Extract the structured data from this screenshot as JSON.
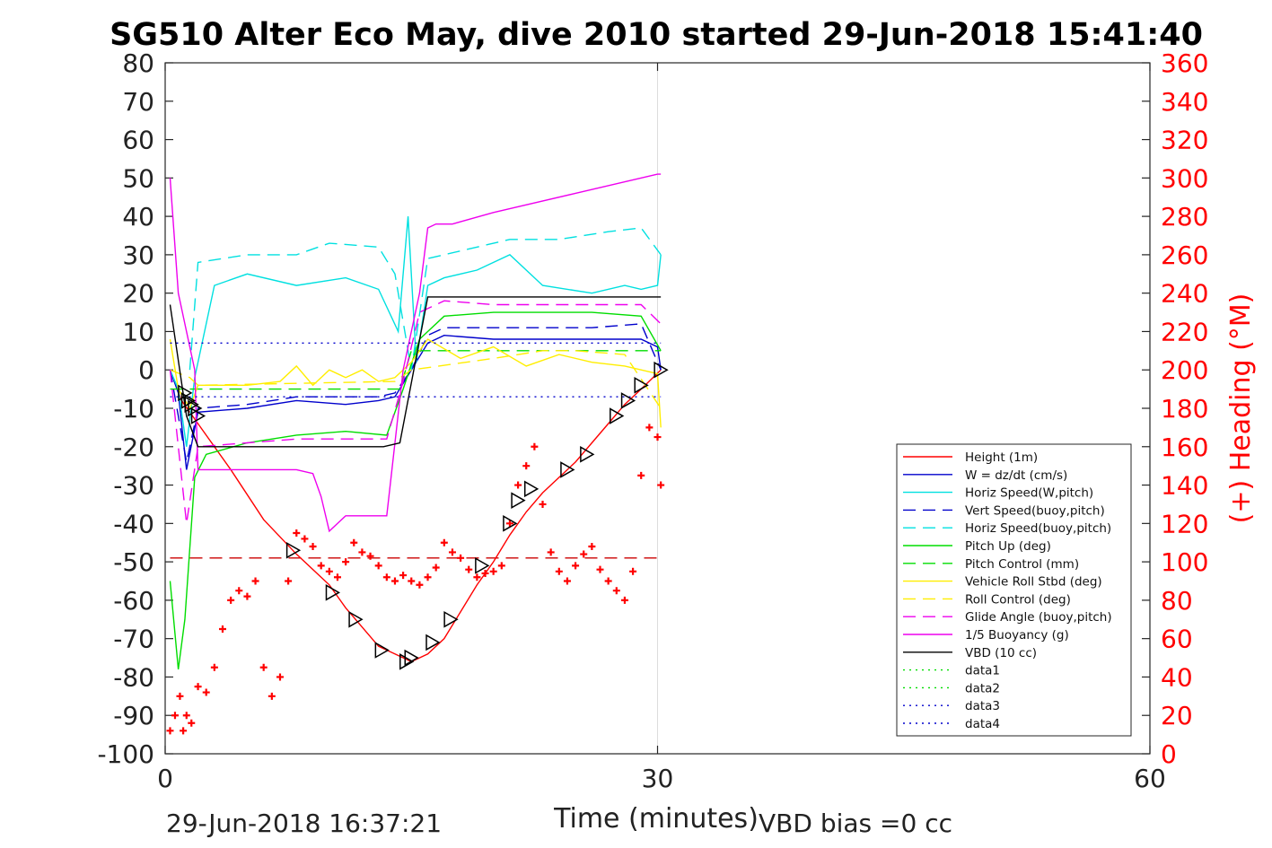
{
  "chart_data": {
    "type": "line",
    "title": "SG510 Alter Eco May, dive 2010 started 29-Jun-2018 15:41:40",
    "xlabel": "Time (minutes)",
    "ylabel_right": "(+) Heading (°M)",
    "footer_left": "29-Jun-2018 16:37:21",
    "footer_right": "VBD bias =0 cc",
    "xlim": [
      0,
      60
    ],
    "ylim": [
      -100,
      80
    ],
    "ylim_right": [
      0,
      360
    ],
    "xticks": [
      "0",
      "30",
      "60"
    ],
    "yticks": [
      "80",
      "70",
      "60",
      "50",
      "40",
      "30",
      "20",
      "10",
      "0",
      "-10",
      "-20",
      "-30",
      "-40",
      "-50",
      "-60",
      "-70",
      "-80",
      "-90",
      "-100"
    ],
    "yticks_right": [
      "360",
      "340",
      "320",
      "300",
      "280",
      "260",
      "240",
      "220",
      "200",
      "180",
      "160",
      "140",
      "120",
      "100",
      "80",
      "60",
      "40",
      "20",
      "0"
    ],
    "grid": "x-only",
    "legend_position": "lower-right",
    "series": [
      {
        "name": "Height (1m)",
        "color": "#ff0000",
        "style": "solid",
        "x": [
          0.3,
          1,
          2,
          4,
          6,
          8,
          10,
          11,
          12,
          13,
          14,
          15,
          16,
          17,
          18,
          19,
          20,
          21,
          22,
          23,
          24,
          25,
          26,
          27,
          28,
          29,
          30.2
        ],
        "y": [
          0,
          -8,
          -14,
          -26,
          -39,
          -48,
          -56,
          -62,
          -67,
          -72,
          -74,
          -76,
          -74,
          -70,
          -63,
          -56,
          -50,
          -43,
          -37,
          -32,
          -28,
          -24,
          -19,
          -14,
          -9,
          -5,
          0
        ]
      },
      {
        "name": "W = dz/dt (cm/s)",
        "color": "#0000cc",
        "style": "solid",
        "x": [
          0.3,
          0.8,
          1.3,
          2,
          5,
          8,
          11,
          13,
          14,
          15,
          16,
          17,
          20,
          23,
          26,
          29,
          30,
          30.2
        ],
        "y": [
          0,
          -6,
          -26,
          -11,
          -10,
          -8,
          -9,
          -8,
          -7,
          0,
          7,
          9,
          8,
          8,
          8,
          8,
          6,
          0
        ]
      },
      {
        "name": "Horiz Speed(W,pitch)",
        "color": "#00e0e0",
        "style": "solid",
        "x": [
          0.3,
          0.8,
          1.3,
          1.8,
          3,
          5,
          8,
          11,
          13,
          14.2,
          14.8,
          15.3,
          16,
          17,
          19,
          21,
          23,
          26,
          28,
          29,
          30,
          30.2
        ],
        "y": [
          0,
          -5,
          -20,
          -2,
          22,
          25,
          22,
          24,
          21,
          10,
          40,
          2,
          22,
          24,
          26,
          30,
          22,
          20,
          22,
          21,
          22,
          30
        ]
      },
      {
        "name": "Vert Speed(buoy,pitch)",
        "color": "#0000cc",
        "style": "dashed",
        "x": [
          0.3,
          1.3,
          2,
          5,
          8,
          11,
          13,
          14,
          15,
          16,
          17,
          20,
          23,
          26,
          29,
          30.2
        ],
        "y": [
          0,
          -24,
          -10,
          -9,
          -7,
          -7,
          -7,
          -6,
          0,
          9,
          11,
          11,
          11,
          11,
          12,
          0
        ]
      },
      {
        "name": "Horiz Speed(buoy,pitch)",
        "color": "#00e0e0",
        "style": "dashed",
        "x": [
          1.5,
          2,
          5,
          8,
          10,
          13,
          14,
          15,
          16,
          18,
          21,
          24,
          27,
          29,
          30.2
        ],
        "y": [
          0,
          28,
          30,
          30,
          33,
          32,
          25,
          0,
          29,
          31,
          34,
          34,
          36,
          37,
          30
        ]
      },
      {
        "name": "Pitch Up (deg)",
        "color": "#00dd00",
        "style": "solid",
        "x": [
          0.3,
          0.8,
          1.2,
          1.8,
          2.5,
          5,
          8,
          11,
          13.5,
          14.5,
          15.5,
          17,
          20,
          23,
          26,
          29,
          30.2
        ],
        "y": [
          -55,
          -78,
          -65,
          -28,
          -22,
          -19,
          -17,
          -16,
          -17,
          -5,
          8,
          14,
          15,
          15,
          15,
          14,
          5
        ]
      },
      {
        "name": "Pitch Control (mm)",
        "color": "#00dd00",
        "style": "dashed",
        "x": [
          0.3,
          0.6,
          1.4,
          14.3,
          15,
          30.2
        ],
        "y": [
          -5,
          -5,
          -5,
          -5,
          5,
          5
        ]
      },
      {
        "name": "Vehicle Roll Stbd (deg)",
        "color": "#ffee00",
        "style": "solid",
        "x": [
          0.3,
          0.8,
          1.5,
          2,
          5,
          7,
          8,
          9,
          10,
          11,
          12,
          13,
          14,
          15,
          16,
          18,
          20,
          22,
          24,
          26,
          28,
          30,
          30.2
        ],
        "y": [
          8,
          -5,
          -10,
          -4,
          -4,
          -3,
          1,
          -4,
          0,
          -2,
          0,
          -3,
          -2,
          2,
          8,
          3,
          6,
          1,
          4,
          2,
          1,
          -1,
          -15
        ]
      },
      {
        "name": "Roll Control (deg)",
        "color": "#ffee00",
        "style": "dashed",
        "x": [
          0.3,
          1.5,
          2,
          14,
          15,
          20,
          23,
          25,
          28,
          30.2
        ],
        "y": [
          0,
          -2,
          -4,
          -3,
          0,
          3,
          5,
          5,
          4,
          -10
        ]
      },
      {
        "name": "Glide Angle (buoy,pitch)",
        "color": "#ee00ee",
        "style": "dashed",
        "x": [
          0.3,
          1.3,
          2,
          5,
          8,
          11,
          13.5,
          14.5,
          15.5,
          17,
          20,
          23,
          26,
          29,
          30.2
        ],
        "y": [
          0,
          -40,
          -20,
          -19,
          -18,
          -18,
          -18,
          -3,
          15,
          18,
          17,
          17,
          17,
          17,
          12
        ]
      },
      {
        "name": "1/5 Buoyancy (g)",
        "color": "#ee00ee",
        "style": "solid",
        "x": [
          0.3,
          0.8,
          1.8,
          2,
          8,
          9,
          9.5,
          10,
          11,
          13,
          13.5,
          14.5,
          15.5,
          16,
          16.5,
          17.5,
          20,
          25,
          30,
          30.2
        ],
        "y": [
          50,
          20,
          0,
          -26,
          -26,
          -27,
          -33,
          -42,
          -38,
          -38,
          -38,
          0,
          20,
          37,
          38,
          38,
          41,
          46,
          51,
          51
        ]
      },
      {
        "name": "VBD (10 cc)",
        "color": "#000000",
        "style": "solid",
        "x": [
          0.3,
          1.3,
          2,
          13.3,
          14.3,
          16,
          30.2
        ],
        "y": [
          17,
          -12,
          -20,
          -20,
          -19,
          19,
          19
        ]
      },
      {
        "name": "data1",
        "color": "#00dd00",
        "style": "dotted",
        "x": [],
        "y": []
      },
      {
        "name": "data2",
        "color": "#00dd00",
        "style": "dotted",
        "x": [],
        "y": []
      },
      {
        "name": "data3",
        "color": "#0000cc",
        "style": "dotted",
        "x": [
          0.3,
          30.2
        ],
        "y": [
          7,
          7
        ]
      },
      {
        "name": "data4",
        "color": "#0000cc",
        "style": "dotted",
        "x": [
          0.3,
          30.2
        ],
        "y": [
          -7,
          -7
        ]
      }
    ],
    "reference_lines": [
      {
        "style": "dashed",
        "color": "#cc0000",
        "x": [
          0.3,
          30.2
        ],
        "y": [
          -49,
          -49
        ]
      }
    ],
    "markers": {
      "triangles": {
        "x": [
          1.2,
          1.4,
          1.6,
          1.8,
          2.0,
          7.8,
          10.2,
          11.6,
          13.2,
          14.7,
          15.0,
          16.3,
          17.4,
          19.3,
          21.0,
          21.5,
          22.3,
          24.5,
          25.7,
          27.5,
          28.2,
          29.0,
          30.2
        ],
        "y": [
          -6,
          -8,
          -9,
          -10,
          -12,
          -47,
          -58,
          -65,
          -73,
          -76,
          -75,
          -71,
          -65,
          -51,
          -40,
          -34,
          -31,
          -26,
          -22,
          -12,
          -8,
          -4,
          0
        ]
      },
      "heading_crosses": {
        "x": [
          0.3,
          0.6,
          0.9,
          1.1,
          1.3,
          1.6,
          2.0,
          2.5,
          3,
          3.5,
          4,
          4.5,
          5,
          5.5,
          6,
          6.5,
          7,
          7.5,
          8,
          8.5,
          9,
          9.5,
          10,
          10.5,
          11,
          11.5,
          12,
          12.5,
          13,
          13.5,
          14,
          14.5,
          15,
          15.5,
          16,
          16.5,
          17,
          17.5,
          18,
          18.5,
          19,
          19.5,
          20,
          20.5,
          21,
          21.5,
          22,
          22.5,
          23,
          23.5,
          24,
          24.5,
          25,
          25.5,
          26,
          26.5,
          27,
          27.5,
          28,
          28.5,
          29,
          29.5,
          30,
          30.2
        ],
        "y": [
          12,
          20,
          30,
          12,
          20,
          16,
          35,
          32,
          45,
          65,
          80,
          85,
          82,
          90,
          45,
          30,
          40,
          90,
          115,
          112,
          108,
          98,
          95,
          92,
          100,
          110,
          105,
          103,
          98,
          92,
          90,
          93,
          90,
          88,
          92,
          97,
          110,
          105,
          102,
          96,
          92,
          94,
          95,
          98,
          120,
          140,
          150,
          160,
          130,
          105,
          95,
          90,
          98,
          104,
          108,
          96,
          90,
          85,
          80,
          95,
          145,
          170,
          165,
          140
        ]
      }
    }
  }
}
